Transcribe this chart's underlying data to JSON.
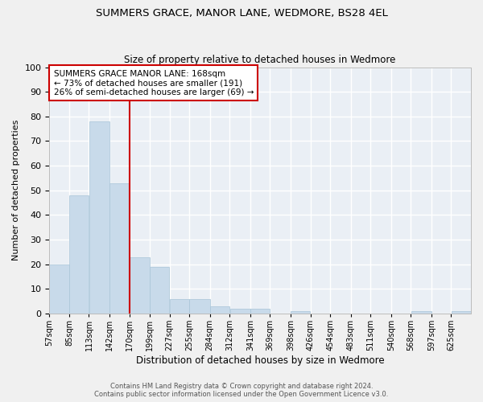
{
  "title": "SUMMERS GRACE, MANOR LANE, WEDMORE, BS28 4EL",
  "subtitle": "Size of property relative to detached houses in Wedmore",
  "xlabel": "Distribution of detached houses by size in Wedmore",
  "ylabel": "Number of detached properties",
  "bar_color": "#c8daea",
  "bar_edge_color": "#a8c4d8",
  "background_color": "#eaeff5",
  "grid_color": "#ffffff",
  "vline_color": "#cc0000",
  "bin_edges": [
    57,
    85,
    113,
    142,
    170,
    199,
    227,
    255,
    284,
    312,
    341,
    369,
    398,
    426,
    454,
    483,
    511,
    540,
    568,
    597,
    625,
    653
  ],
  "counts": [
    20,
    48,
    78,
    53,
    23,
    19,
    6,
    6,
    3,
    2,
    2,
    0,
    1,
    0,
    0,
    0,
    0,
    0,
    1,
    0,
    1
  ],
  "tick_labels": [
    "57sqm",
    "85sqm",
    "113sqm",
    "142sqm",
    "170sqm",
    "199sqm",
    "227sqm",
    "255sqm",
    "284sqm",
    "312sqm",
    "341sqm",
    "369sqm",
    "398sqm",
    "426sqm",
    "454sqm",
    "483sqm",
    "511sqm",
    "540sqm",
    "568sqm",
    "597sqm",
    "625sqm"
  ],
  "annotation_text": "SUMMERS GRACE MANOR LANE: 168sqm\n← 73% of detached houses are smaller (191)\n26% of semi-detached houses are larger (69) →",
  "annotation_box_color": "#ffffff",
  "annotation_box_edge": "#cc0000",
  "footer_line1": "Contains HM Land Registry data © Crown copyright and database right 2024.",
  "footer_line2": "Contains public sector information licensed under the Open Government Licence v3.0.",
  "ylim": [
    0,
    100
  ],
  "yticks": [
    0,
    10,
    20,
    30,
    40,
    50,
    60,
    70,
    80,
    90,
    100
  ],
  "vline_x_bin_index": 4,
  "fig_width": 6.0,
  "fig_height": 5.0,
  "dpi": 100
}
